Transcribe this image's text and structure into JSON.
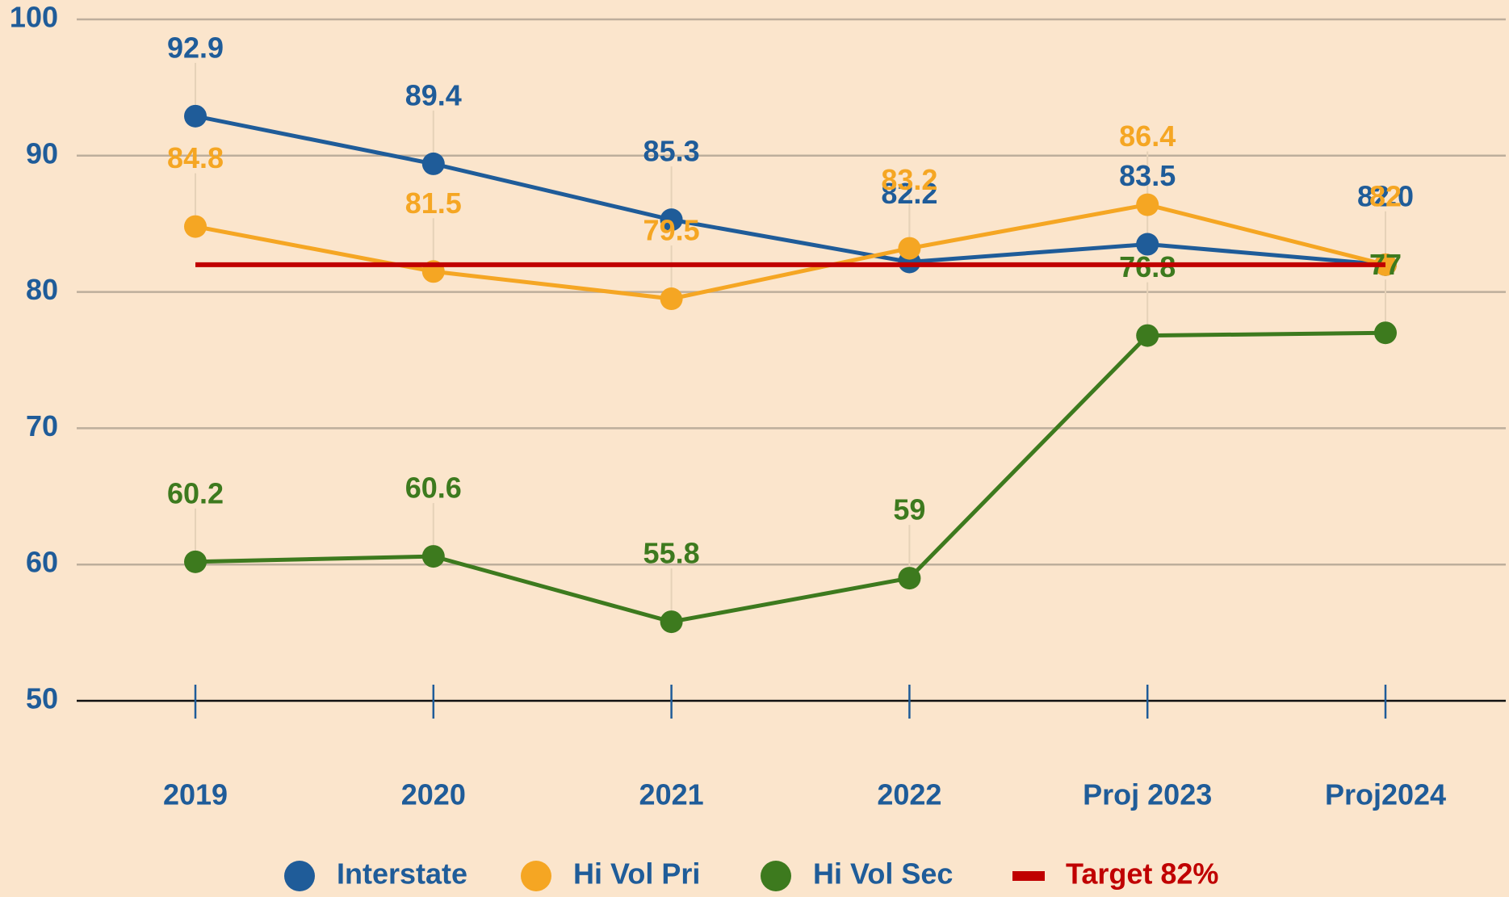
{
  "chart_data": {
    "type": "line",
    "categories": [
      "2019",
      "2020",
      "2021",
      "2022",
      "Proj 2023",
      "Proj2024"
    ],
    "series": [
      {
        "name": "Interstate",
        "color": "#1f5c99",
        "values": [
          92.9,
          89.4,
          85.3,
          82.2,
          83.5,
          82.0
        ],
        "value_labels": [
          "92.9",
          "89.4",
          "85.3",
          "82.2",
          "83.5",
          "82.0"
        ]
      },
      {
        "name": "Hi Vol Pri",
        "color": "#f5a623",
        "values": [
          84.8,
          81.5,
          79.5,
          83.2,
          86.4,
          82
        ]
      },
      {
        "name": "Hi Vol Sec",
        "color": "#3d7a1e",
        "values": [
          60.2,
          60.6,
          55.8,
          59,
          76.8,
          77
        ]
      },
      {
        "name": "Target 82%",
        "color": "#c00000",
        "values": [
          82,
          82,
          82,
          82,
          82,
          82
        ],
        "markers": false
      }
    ],
    "ylim": [
      50,
      100
    ],
    "yticks": [
      50,
      60,
      70,
      80,
      90,
      100
    ],
    "grid": true,
    "background": "#fbe5cc",
    "axis_color": "#1f5c99",
    "legend": "bottom"
  }
}
